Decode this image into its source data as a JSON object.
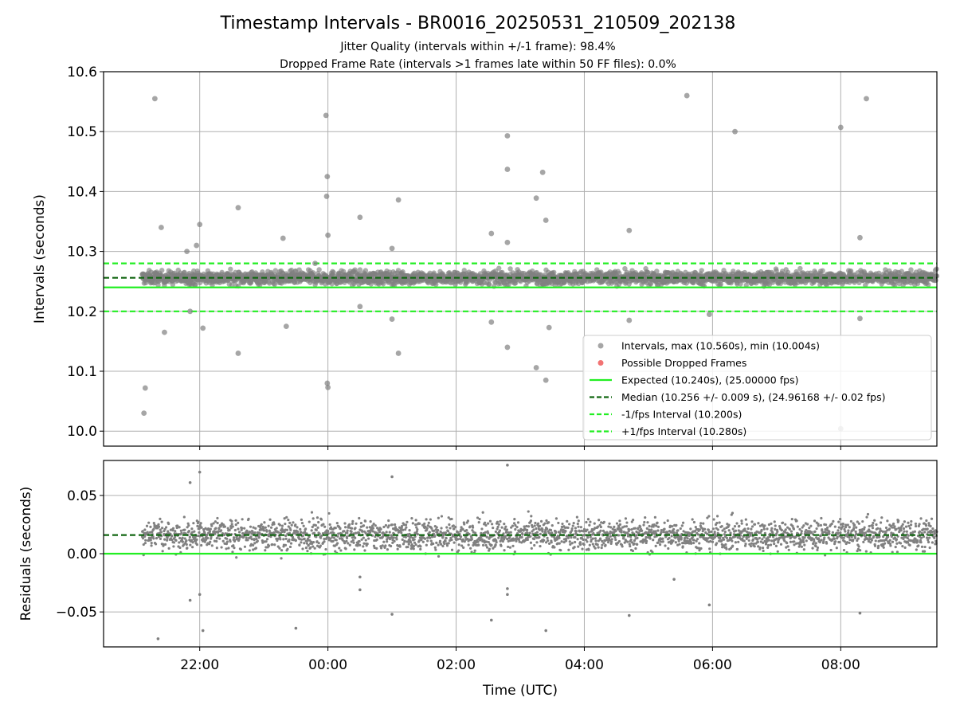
{
  "figure": {
    "title": "Timestamp Intervals - BR0016_20250531_210509_202138",
    "subtitle_1": "Jitter Quality (intervals within +/-1 frame): 98.4%",
    "subtitle_2": "Dropped Frame Rate (intervals >1 frames late within 50 FF files): 0.0%"
  },
  "colors": {
    "points": "#808080",
    "dropped": "#ee4444",
    "expected": "#22ee22",
    "median": "#116611",
    "interval_lines": "#22ee22",
    "grid": "#b0b0b0"
  },
  "chart_data": [
    {
      "type": "scatter",
      "panel": "intervals",
      "ylabel": "Intervals (seconds)",
      "xlim": [
        20.5,
        33.5
      ],
      "ylim": [
        9.975,
        10.6
      ],
      "yticks": [
        "10.0",
        "10.1",
        "10.2",
        "10.3",
        "10.4",
        "10.5",
        "10.6"
      ],
      "ytick_values": [
        10.0,
        10.1,
        10.2,
        10.3,
        10.4,
        10.5,
        10.6
      ],
      "grid": true,
      "legend_position": "lower-right",
      "legend": [
        "Intervals, max (10.560s), min (10.004s)",
        "Possible Dropped Frames",
        "Expected (10.240s), (25.00000 fps)",
        "Median (10.256 +/- 0.009 s), (24.96168 +/- 0.02 fps)",
        "-1/fps Interval (10.200s)",
        "+1/fps Interval (10.280s)"
      ],
      "reference_lines": {
        "expected": 10.24,
        "median": 10.256,
        "minus_1_fps": 10.2,
        "plus_1_fps": 10.28
      },
      "band": {
        "x_start": 21.1,
        "x_end": 33.5,
        "center": 10.256,
        "spread": 0.012
      },
      "outliers": [
        [
          21.15,
          10.072
        ],
        [
          21.13,
          10.03
        ],
        [
          21.3,
          10.555
        ],
        [
          21.4,
          10.34
        ],
        [
          21.45,
          10.165
        ],
        [
          21.8,
          10.3
        ],
        [
          21.95,
          10.31
        ],
        [
          22.0,
          10.345
        ],
        [
          21.85,
          10.2
        ],
        [
          22.05,
          10.172
        ],
        [
          22.6,
          10.373
        ],
        [
          22.6,
          10.13
        ],
        [
          23.35,
          10.175
        ],
        [
          23.3,
          10.322
        ],
        [
          23.8,
          10.28
        ],
        [
          23.97,
          10.527
        ],
        [
          23.99,
          10.425
        ],
        [
          23.98,
          10.392
        ],
        [
          24.0,
          10.327
        ],
        [
          23.99,
          10.08
        ],
        [
          24.0,
          10.073
        ],
        [
          24.5,
          10.357
        ],
        [
          24.5,
          10.208
        ],
        [
          25.0,
          10.305
        ],
        [
          25.0,
          10.187
        ],
        [
          25.1,
          10.386
        ],
        [
          25.1,
          10.13
        ],
        [
          26.55,
          10.33
        ],
        [
          26.55,
          10.182
        ],
        [
          26.8,
          10.493
        ],
        [
          26.8,
          10.437
        ],
        [
          26.8,
          10.315
        ],
        [
          26.8,
          10.14
        ],
        [
          27.25,
          10.389
        ],
        [
          27.25,
          10.106
        ],
        [
          27.35,
          10.432
        ],
        [
          27.4,
          10.352
        ],
        [
          27.4,
          10.085
        ],
        [
          27.45,
          10.173
        ],
        [
          28.7,
          10.335
        ],
        [
          28.7,
          10.185
        ],
        [
          29.6,
          10.56
        ],
        [
          30.35,
          10.5
        ],
        [
          29.95,
          10.195
        ],
        [
          32.0,
          10.507
        ],
        [
          32.0,
          10.004
        ],
        [
          32.4,
          10.555
        ],
        [
          32.3,
          10.323
        ],
        [
          32.3,
          10.188
        ]
      ],
      "note": "dense band of ~3000 points around the median between x_start and x_end"
    },
    {
      "type": "scatter",
      "panel": "residuals",
      "xlabel": "Time (UTC)",
      "ylabel": "Residuals (seconds)",
      "xlim": [
        20.5,
        33.5
      ],
      "ylim": [
        -0.08,
        0.08
      ],
      "yticks": [
        "−0.05",
        "0.00",
        "0.05"
      ],
      "ytick_values": [
        -0.05,
        0.0,
        0.05
      ],
      "xticks": [
        "22:00",
        "00:00",
        "02:00",
        "04:00",
        "06:00",
        "08:00"
      ],
      "xtick_values": [
        22,
        24,
        26,
        28,
        30,
        32
      ],
      "grid": true,
      "reference_lines": {
        "expected": 0.0,
        "median": 0.016
      },
      "band": {
        "x_start": 21.1,
        "x_end": 33.5,
        "center": 0.016,
        "spread": 0.012
      },
      "outliers": [
        [
          21.35,
          -0.073
        ],
        [
          21.85,
          0.061
        ],
        [
          22.0,
          0.07
        ],
        [
          21.85,
          -0.04
        ],
        [
          22.0,
          -0.035
        ],
        [
          22.05,
          -0.066
        ],
        [
          23.5,
          -0.064
        ],
        [
          25.0,
          0.066
        ],
        [
          25.0,
          -0.052
        ],
        [
          26.8,
          0.076
        ],
        [
          26.55,
          -0.057
        ],
        [
          26.8,
          -0.035
        ],
        [
          26.8,
          -0.03
        ],
        [
          27.4,
          -0.066
        ],
        [
          28.7,
          -0.053
        ],
        [
          29.95,
          -0.044
        ],
        [
          32.3,
          -0.051
        ],
        [
          24.5,
          -0.031
        ],
        [
          24.5,
          -0.02
        ],
        [
          29.4,
          -0.022
        ]
      ]
    }
  ]
}
